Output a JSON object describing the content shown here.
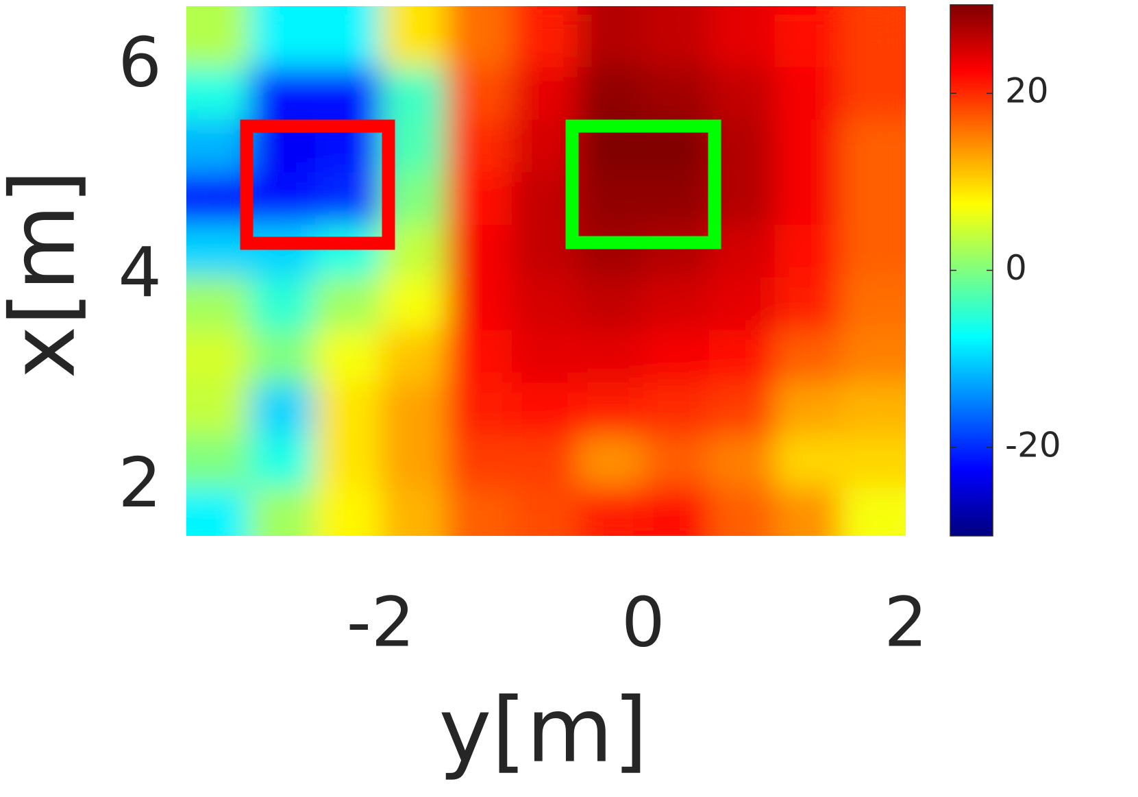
{
  "chart_data": {
    "type": "heatmap",
    "x": [
      -3.25,
      -2.75,
      -2.25,
      -1.75,
      -1.25,
      -0.75,
      -0.25,
      0.25,
      0.75,
      1.25,
      1.75
    ],
    "y": [
      6.25,
      5.75,
      5.25,
      4.75,
      4.25,
      3.75,
      3.25,
      2.75,
      2.25,
      1.75
    ],
    "values": [
      [
        3,
        -8,
        -8,
        9,
        16,
        21,
        27,
        26,
        24,
        22,
        19
      ],
      [
        -6,
        -22,
        -22,
        -4,
        18,
        24,
        29,
        28,
        26,
        23,
        19
      ],
      [
        -12,
        -23,
        -22,
        -3,
        20,
        25,
        30,
        30,
        27,
        23,
        17
      ],
      [
        -22,
        -22,
        -20,
        0,
        22,
        26,
        29,
        29,
        27,
        23,
        17
      ],
      [
        -10,
        -10,
        -6,
        4,
        23,
        26,
        28,
        27,
        25,
        22,
        17
      ],
      [
        2,
        -5,
        2,
        7,
        23,
        25,
        26,
        25,
        24,
        21,
        16
      ],
      [
        5,
        0,
        7,
        11,
        22,
        24,
        24,
        23,
        22,
        17,
        15
      ],
      [
        4,
        -10,
        9,
        13,
        21,
        22,
        21,
        20,
        19,
        13,
        12
      ],
      [
        0,
        -6,
        9,
        13,
        19,
        19,
        14,
        17,
        15,
        10,
        10
      ],
      [
        -8,
        2,
        8,
        12,
        17,
        18,
        21,
        22,
        17,
        14,
        7
      ]
    ],
    "xlim": [
      -3.48,
      2
    ],
    "ylim": [
      1.54,
      6.58
    ],
    "xticks": [
      -2,
      0,
      2
    ],
    "yticks": [
      2,
      4,
      6
    ],
    "xlabel": "y[m]",
    "ylabel": "x[m]",
    "colormap": "jet",
    "clim": [
      -30,
      30
    ],
    "cticks": [
      -20,
      0,
      20
    ]
  }
}
